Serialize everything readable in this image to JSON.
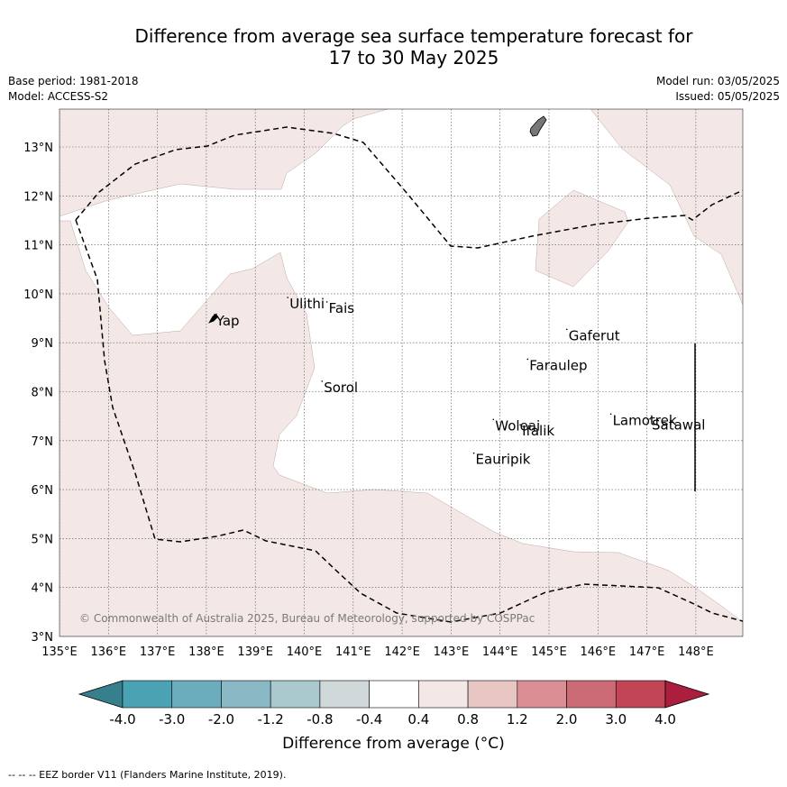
{
  "title_line1": "Difference from average sea surface temperature forecast for",
  "title_line2": "17 to 30 May 2025",
  "base_period": "Base period: 1981-2018",
  "model": "Model: ACCESS-S2",
  "model_run": "Model run: 03/05/2025",
  "issued": "Issued: 05/05/2025",
  "copyright": "© Commonwealth of Australia 2025, Bureau of Meteorology, supported by COSPPac",
  "map": {
    "lon_range": [
      135,
      149
    ],
    "lat_range": [
      3,
      13.8
    ],
    "lon_ticks": [
      "135°E",
      "136°E",
      "137°E",
      "138°E",
      "139°E",
      "140°E",
      "141°E",
      "142°E",
      "143°E",
      "144°E",
      "145°E",
      "146°E",
      "147°E",
      "148°E"
    ],
    "lat_ticks": [
      "3°N",
      "4°N",
      "5°N",
      "6°N",
      "7°N",
      "8°N",
      "9°N",
      "10°N",
      "11°N",
      "12°N",
      "13°N"
    ],
    "places": [
      {
        "name": "Yap",
        "lon": 138.2,
        "lat": 9.5
      },
      {
        "name": "Ulithi",
        "lon": 139.7,
        "lat": 9.85
      },
      {
        "name": "Fais",
        "lon": 140.5,
        "lat": 9.76
      },
      {
        "name": "Gaferut",
        "lon": 145.4,
        "lat": 9.2
      },
      {
        "name": "Faraulep",
        "lon": 144.6,
        "lat": 8.59
      },
      {
        "name": "Sorol",
        "lon": 140.4,
        "lat": 8.14
      },
      {
        "name": "Woleai",
        "lon": 143.9,
        "lat": 7.36
      },
      {
        "name": "Ifalik",
        "lon": 144.45,
        "lat": 7.25
      },
      {
        "name": "Lamotrek",
        "lon": 146.3,
        "lat": 7.47
      },
      {
        "name": "Satawal",
        "lon": 147.1,
        "lat": 7.37
      },
      {
        "name": "Eauripik",
        "lon": 143.5,
        "lat": 6.67
      }
    ]
  },
  "colorbar": {
    "ticks": [
      "-4.0",
      "-3.0",
      "-2.0",
      "-1.2",
      "-0.8",
      "-0.4",
      "0.4",
      "0.8",
      "1.2",
      "2.0",
      "3.0",
      "4.0"
    ],
    "colors": [
      "#377f8c",
      "#4ba2b3",
      "#6badbc",
      "#8ab8c5",
      "#a9c9cf",
      "#d1d8d9",
      "#ffffff",
      "#f4e8e6",
      "#e8c6c2",
      "#d98f94",
      "#cc6b75",
      "#c24556",
      "#ab1e3d"
    ],
    "label": "Difference from average ($^\\circ$C)",
    "label_text": "Difference from average (°C)"
  },
  "colors": {
    "warm_light": "#f4e8e6",
    "border": "#000000"
  },
  "footnote": "--  --  -- EEZ border V11 (Flanders Marine Institute, 2019)."
}
